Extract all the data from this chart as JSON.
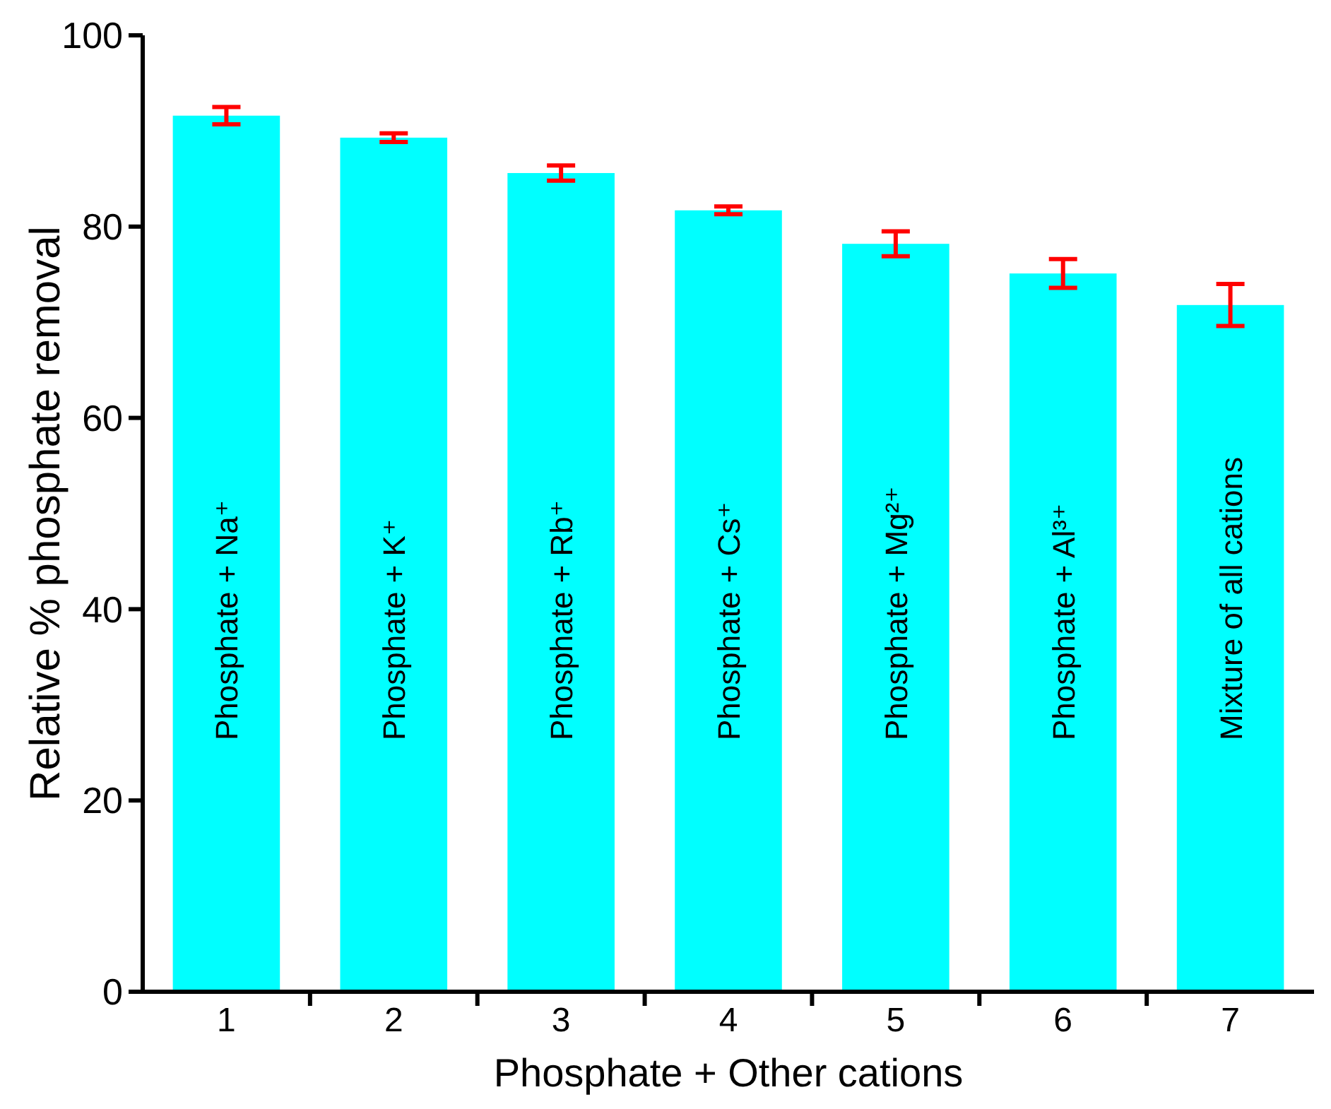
{
  "chart_data": {
    "type": "bar",
    "xlabel": "Phosphate + Other cations",
    "ylabel": "Relative % phosphate removal",
    "categories": [
      "1",
      "2",
      "3",
      "4",
      "5",
      "6",
      "7"
    ],
    "values": [
      91.6,
      89.3,
      85.6,
      81.7,
      78.2,
      75.1,
      71.8
    ],
    "errors": [
      0.9,
      0.45,
      0.8,
      0.4,
      1.3,
      1.5,
      2.2
    ],
    "color": "#00ffff",
    "ylim": [
      0,
      100
    ],
    "yticks": [
      0,
      20,
      40,
      60,
      80,
      100
    ],
    "grid": false,
    "annotations": [
      "Phosphate + Na⁺",
      "Phosphate + K⁺",
      "Phosphate + Rb⁺",
      "Phosphate + Cs⁺",
      "Phosphate + Mg²⁺",
      "Phosphate + Al³⁺",
      "Mixture of all cations"
    ]
  }
}
